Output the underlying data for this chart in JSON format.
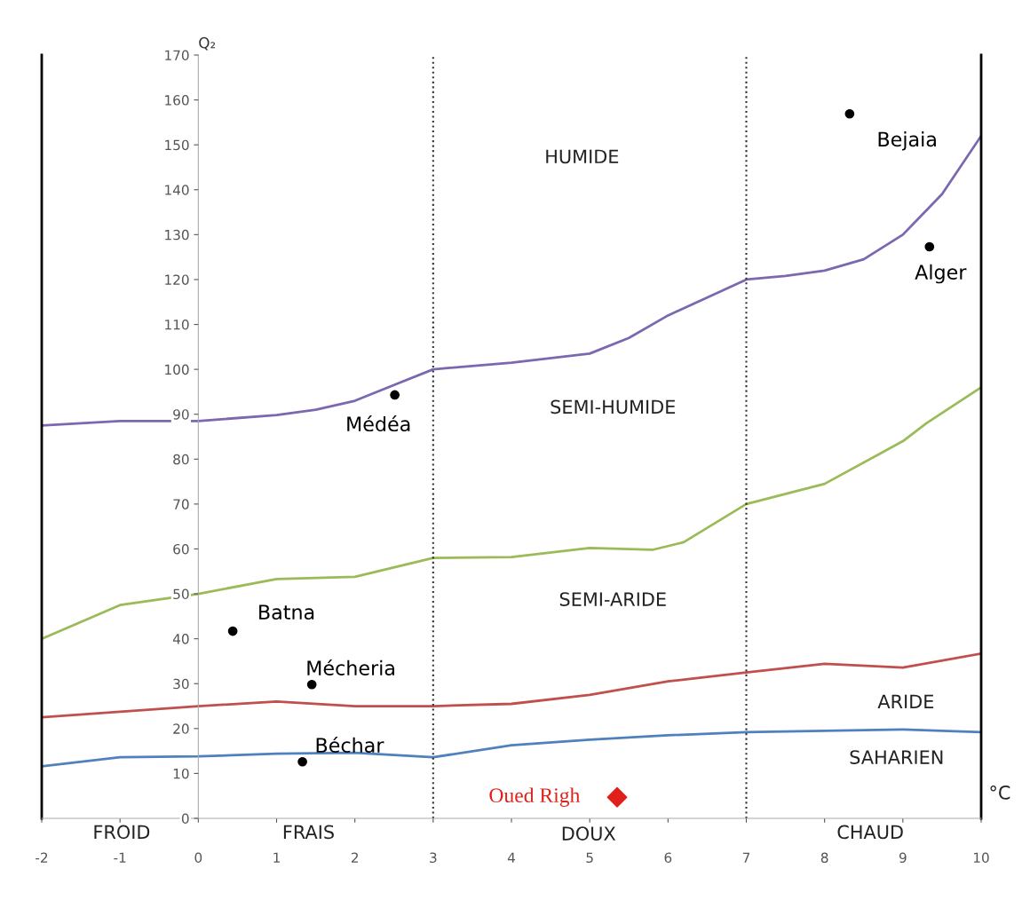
{
  "chart_data": {
    "type": "line",
    "xlabel": "°C",
    "ylabel": "Q₂",
    "xlim": [
      -2,
      10
    ],
    "xticks": [
      -2,
      -1,
      0,
      1,
      2,
      3,
      4,
      5,
      6,
      7,
      8,
      9,
      10
    ],
    "ylim": [
      0,
      170
    ],
    "yticks": [
      0,
      10,
      20,
      30,
      40,
      50,
      60,
      70,
      80,
      90,
      100,
      110,
      120,
      130,
      140,
      150,
      160,
      170
    ],
    "grid": false,
    "legend": false,
    "series": [
      {
        "color": "#7b68b0",
        "x": [
          -2,
          -1,
          0,
          1,
          1.5,
          2,
          2.5,
          3,
          4,
          5,
          5.5,
          6,
          6.5,
          7,
          7.5,
          8,
          8.5,
          9,
          9.5,
          10
        ],
        "values": [
          87.5,
          88.5,
          88.5,
          89.8,
          91,
          93,
          96.5,
          100,
          101.5,
          103.5,
          107,
          112,
          116,
          120,
          120.8,
          122,
          124.5,
          130,
          139,
          152
        ]
      },
      {
        "color": "#9bbb59",
        "x": [
          -2,
          -1,
          0,
          1,
          2,
          3,
          4,
          5,
          5.8,
          6.2,
          7,
          8,
          9,
          9.3,
          10
        ],
        "values": [
          40,
          47.5,
          50,
          53.3,
          53.8,
          58,
          58.2,
          60.2,
          59.8,
          61.5,
          70,
          74.5,
          84,
          88,
          96
        ]
      },
      {
        "color": "#c0504d",
        "x": [
          -2,
          0,
          1,
          2,
          3,
          4,
          5,
          6,
          7,
          8,
          9,
          10
        ],
        "values": [
          22.5,
          25,
          26,
          25,
          25,
          25.5,
          27.5,
          30.5,
          32.5,
          34.4,
          33.6,
          36.7
        ]
      },
      {
        "color": "#4f81bd",
        "x": [
          -2,
          -1,
          0,
          1,
          2,
          3,
          4,
          5,
          6,
          7,
          8,
          9,
          10
        ],
        "values": [
          11.6,
          13.6,
          13.8,
          14.4,
          14.6,
          13.6,
          16.3,
          17.5,
          18.5,
          19.2,
          19.5,
          19.8,
          19.2
        ]
      },
      {
        "type": "scatter",
        "name": "Bejaia",
        "color": "#000000",
        "marker": "circle",
        "x": [
          8.32
        ],
        "values": [
          156.9
        ]
      },
      {
        "type": "scatter",
        "name": "Alger",
        "color": "#000000",
        "marker": "circle",
        "x": [
          9.34
        ],
        "values": [
          127.3
        ]
      },
      {
        "type": "scatter",
        "name": "Médéa",
        "color": "#000000",
        "marker": "circle",
        "x": [
          2.51
        ],
        "values": [
          94.3
        ]
      },
      {
        "type": "scatter",
        "name": "Batna",
        "color": "#000000",
        "marker": "circle",
        "x": [
          0.44
        ],
        "values": [
          41.7
        ]
      },
      {
        "type": "scatter",
        "name": "Mécheria",
        "color": "#000000",
        "marker": "circle",
        "x": [
          1.45
        ],
        "values": [
          29.8
        ]
      },
      {
        "type": "scatter",
        "name": "Béchar",
        "color": "#000000",
        "marker": "circle",
        "x": [
          1.33
        ],
        "values": [
          12.6
        ]
      },
      {
        "type": "scatter",
        "name": "Oued Righ",
        "color": "#e0201b",
        "marker": "diamond",
        "x": [
          5.35
        ],
        "values": [
          4.7
        ]
      }
    ],
    "ref_lines": [
      {
        "axis": "x",
        "value": 3,
        "color": "#333333",
        "line_style": "dotted"
      },
      {
        "axis": "x",
        "value": 7,
        "color": "#333333",
        "line_style": "dotted"
      }
    ],
    "annotations": [
      "HUMIDE",
      "SEMI-HUMIDE",
      "SEMI-ARIDE",
      "ARIDE",
      "SAHARIEN",
      "FROID",
      "FRAIS",
      "DOUX",
      "CHAUD"
    ]
  }
}
